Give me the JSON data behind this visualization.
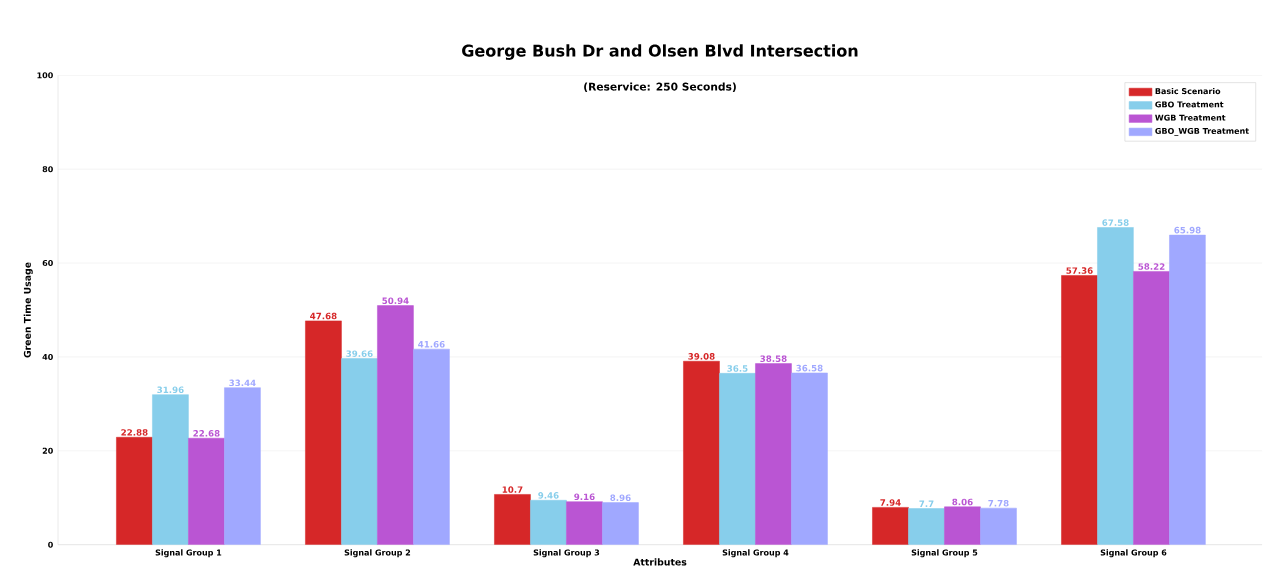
{
  "chart_data": {
    "type": "bar",
    "title": "George Bush Dr and Olsen Blvd Intersection",
    "subtitle": "(Reservice: 250 Seconds)",
    "xlabel": "Attributes",
    "ylabel": "Green Time Usage",
    "categories": [
      "Signal Group 1",
      "Signal Group 2",
      "Signal Group 3",
      "Signal Group 4",
      "Signal Group 5",
      "Signal Group 6"
    ],
    "series": [
      {
        "name": "Basic Scenario",
        "color": "#d62728",
        "values": [
          22.88,
          47.68,
          10.7,
          39.08,
          7.94,
          57.36
        ]
      },
      {
        "name": "GBO Treatment",
        "color": "#87ceeb",
        "values": [
          31.96,
          39.66,
          9.46,
          36.5,
          7.7,
          67.58
        ]
      },
      {
        "name": "WGB Treatment",
        "color": "#ba55d3",
        "values": [
          22.68,
          50.94,
          9.16,
          38.58,
          8.06,
          58.22
        ]
      },
      {
        "name": "GBO_WGB Treatment",
        "color": "#a0a8ff",
        "values": [
          33.44,
          41.66,
          8.96,
          36.58,
          7.78,
          65.98
        ]
      }
    ],
    "ylim": [
      0,
      100
    ],
    "yticks": [
      0,
      20,
      40,
      60,
      80,
      100
    ],
    "grid": "y",
    "legend": "top right",
    "data_labels": true
  }
}
